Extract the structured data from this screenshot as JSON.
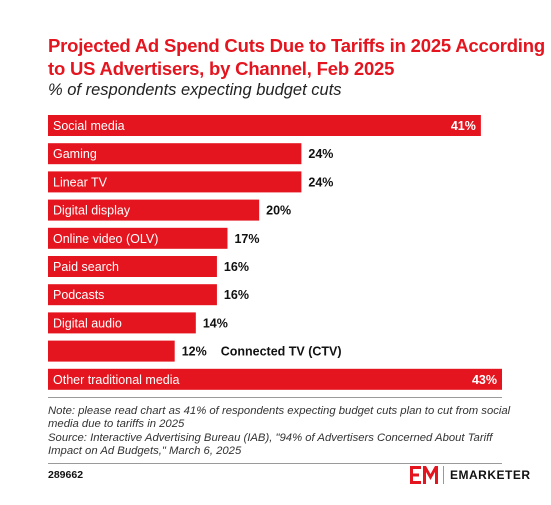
{
  "header": {
    "title": "Projected Ad Spend Cuts Due to Tariffs in 2025 According to US Advertisers, by Channel, Feb 2025",
    "subtitle": "% of respondents expecting budget cuts"
  },
  "chart_data": {
    "type": "bar",
    "orientation": "horizontal",
    "categories": [
      "Social media",
      "Gaming",
      "Linear TV",
      "Digital display",
      "Online video (OLV)",
      "Paid search",
      "Podcasts",
      "Digital audio",
      "Connected TV (CTV)",
      "Other traditional media"
    ],
    "values": [
      41,
      24,
      24,
      20,
      17,
      16,
      16,
      14,
      12,
      43
    ],
    "value_labels": [
      "41%",
      "24%",
      "24%",
      "20%",
      "17%",
      "16%",
      "16%",
      "14%",
      "12%",
      "43%"
    ],
    "xlim": [
      0,
      43
    ],
    "bar_color": "#e4151f",
    "grid": false,
    "legend": "none"
  },
  "footer": {
    "note": "Note: please read chart as 41% of respondents expecting budget cuts plan to cut from social media due to tariffs in 2025",
    "source": "Source: Interactive Advertising Bureau (IAB), \"94% of Advertisers Concerned About Tariff Impact on Ad Budgets,\" March 6, 2025",
    "chart_id": "289662",
    "brand": "EMARKETER",
    "brand_icon": "em-logo-icon",
    "brand_color": "#e4151f"
  }
}
